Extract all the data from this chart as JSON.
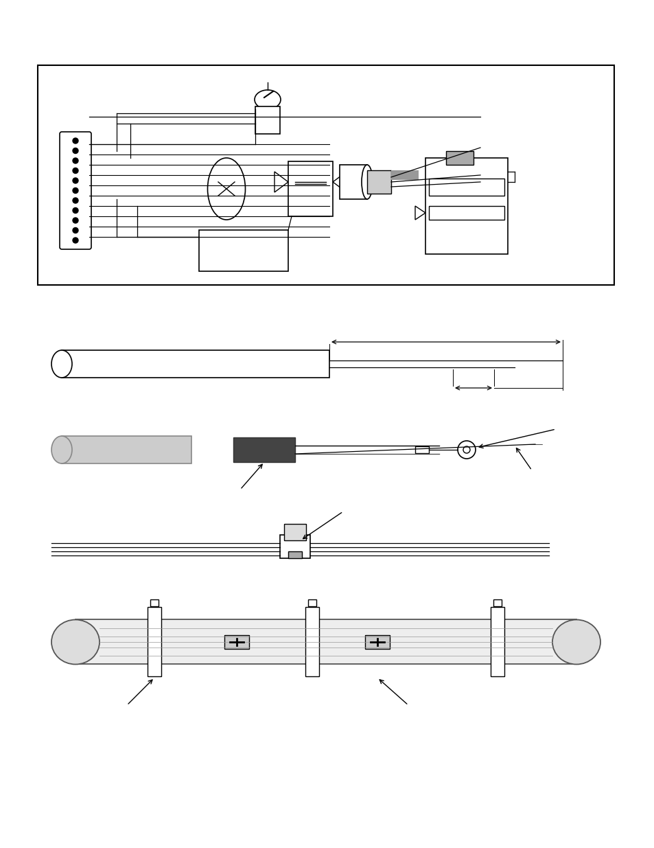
{
  "bg_color": "#ffffff",
  "line_color": "#000000",
  "figure_width": 9.54,
  "figure_height": 12.35
}
